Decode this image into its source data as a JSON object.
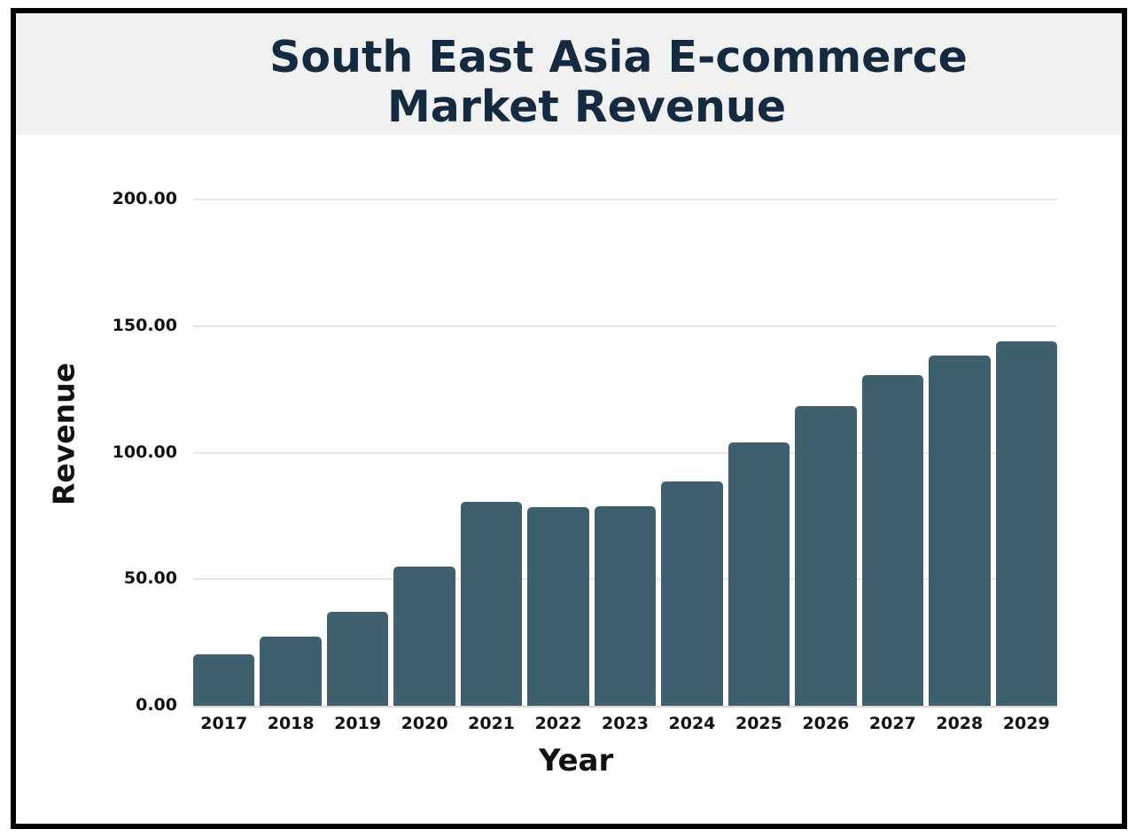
{
  "chart_data": {
    "type": "bar",
    "title": "South East Asia E-commerce Market Revenue",
    "title_lines": [
      "South East Asia E-commerce",
      "Market Revenue"
    ],
    "xlabel": "Year",
    "ylabel": "Revenue",
    "categories": [
      "2017",
      "2018",
      "2019",
      "2020",
      "2021",
      "2022",
      "2023",
      "2024",
      "2025",
      "2026",
      "2027",
      "2028",
      "2029"
    ],
    "values": [
      20.4,
      27.4,
      37.0,
      55.0,
      80.4,
      78.3,
      78.8,
      88.6,
      104.0,
      118.5,
      130.7,
      138.4,
      143.8
    ],
    "ylim": [
      0,
      200
    ],
    "yticks": [
      0,
      50,
      100,
      150,
      200
    ],
    "ytick_labels": [
      "0.00",
      "50.00",
      "100.00",
      "150.00",
      "200.00"
    ],
    "grid": true,
    "legend": null,
    "colors": {
      "bar": "#3e606c",
      "title": "#132a40",
      "header_background": "#f1f1f1",
      "frame_border": "#000000",
      "gridline": "#e6e6e6"
    }
  }
}
